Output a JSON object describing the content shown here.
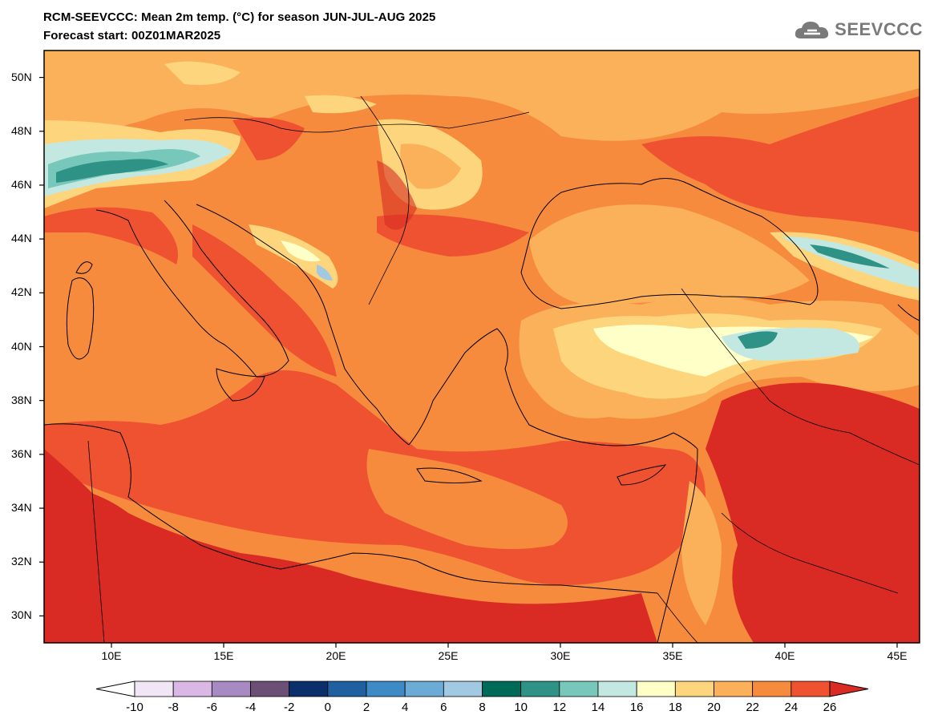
{
  "title": {
    "line1": "RCM-SEEVCCC: Mean 2m temp. (°C) for season JUN-JUL-AUG 2025",
    "line2": "Forecast start: 00Z01MAR2025"
  },
  "logo": {
    "text": "SEEVCCC",
    "icon": "cloud-icon",
    "color": "#7a7a7a"
  },
  "map": {
    "lat_labels": [
      "50N",
      "48N",
      "46N",
      "44N",
      "42N",
      "40N",
      "38N",
      "36N",
      "34N",
      "32N",
      "30N"
    ],
    "lon_labels": [
      "10E",
      "15E",
      "20E",
      "25E",
      "30E",
      "35E",
      "40E",
      "45E"
    ]
  },
  "colorbar": {
    "labels": [
      "-10",
      "-8",
      "-6",
      "-4",
      "-2",
      "0",
      "2",
      "4",
      "6",
      "8",
      "10",
      "12",
      "14",
      "16",
      "18",
      "20",
      "22",
      "24",
      "26"
    ],
    "colors": [
      "#ffffff",
      "#f0e6f5",
      "#d9b8e6",
      "#a88ac2",
      "#6b4f74",
      "#0b2f6b",
      "#1f60a0",
      "#3d8ac4",
      "#6cabd6",
      "#a2c9e2",
      "#006a58",
      "#2e9386",
      "#77c8bb",
      "#c3e8e1",
      "#ffffc8",
      "#fdd57c",
      "#fbb05a",
      "#f68b3e",
      "#ee5231",
      "#d92b23"
    ]
  }
}
